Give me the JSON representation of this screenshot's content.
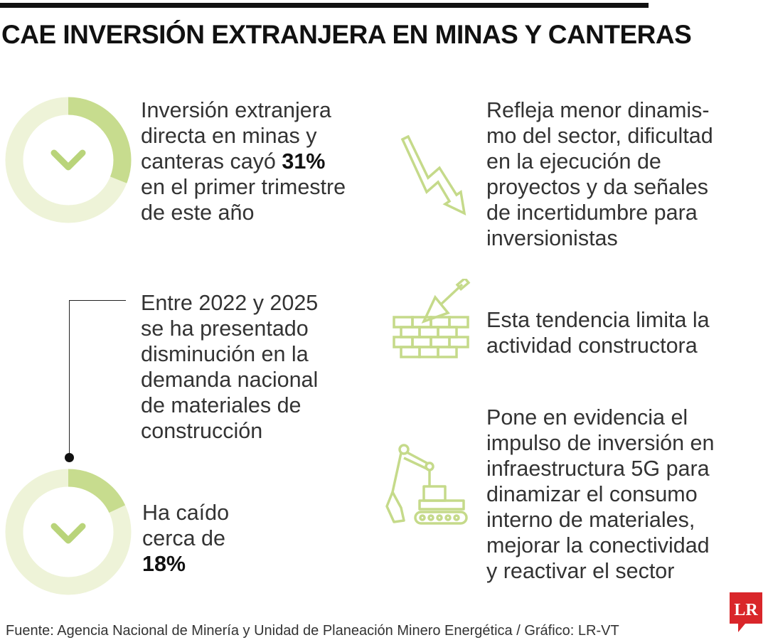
{
  "title": "CAE INVERSIÓN EXTRANJERA EN MINAS Y CANTERAS",
  "colors": {
    "accent": "#c7dc8e",
    "light": "#eef3d8",
    "icon": "#c5da8a",
    "text": "#333333"
  },
  "block1": {
    "lines": [
      "Inversión extranjera",
      "directa en minas y",
      "canteras cayó ",
      "en el primer trimestre",
      "de este año"
    ],
    "value": "31%",
    "ring_fraction": 0.31,
    "icon": "chevron-down-icon"
  },
  "block2": {
    "lines": [
      "Refleja menor dinamis-",
      "mo del sector, dificultad",
      "en la ejecución de",
      "proyectos y da señales",
      "de incertidumbre para",
      "inversionistas"
    ],
    "icon": "downward-zigzag-arrow-icon"
  },
  "block3": {
    "lines": [
      "Entre 2022 y 2025",
      "se ha presentado",
      "disminución en la",
      "demanda nacional",
      "de materiales de",
      "construcción"
    ]
  },
  "block4": {
    "lines": [
      "Esta tendencia limita la",
      "actividad constructora"
    ],
    "icon": "brick-wall-trowel-icon"
  },
  "block5": {
    "lines": [
      "Ha caído",
      "cerca de"
    ],
    "value": "18%",
    "ring_fraction": 0.18,
    "icon": "chevron-down-icon"
  },
  "block6": {
    "lines": [
      "Pone en evidencia el",
      "impulso de inversión en",
      "infraestructura 5G para",
      "dinamizar el consumo",
      "interno de materiales,",
      "mejorar la conectividad",
      "y reactivar el sector"
    ],
    "icon": "excavator-icon"
  },
  "source": "Fuente: Agencia Nacional de Minería y Unidad de Planeación Minero Energética / Gráfico: LR-VT",
  "logo": {
    "text": "LR",
    "color": "#d9262a"
  }
}
